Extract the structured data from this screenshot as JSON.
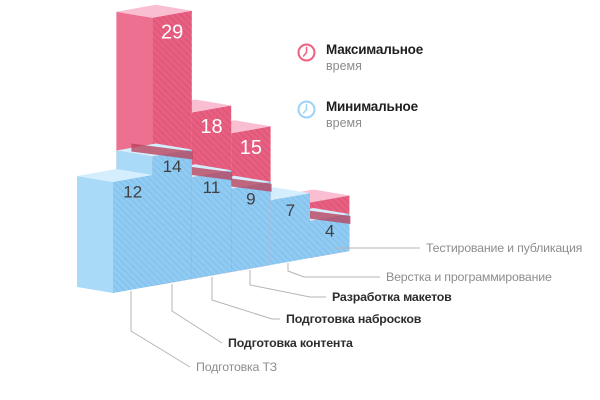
{
  "chart_data": {
    "type": "bar",
    "variant": "3D oblique step bar chart; blue minimum bars in front, pink maximum bars behind/above, value labels on bar faces, callout leader lines to stage labels",
    "title": "",
    "axes_visible": false,
    "grid": false,
    "background": "#ffffff",
    "legend_position": "top-right",
    "categories": [
      "Подготовка ТЗ",
      "Подготовка контента",
      "Подготовка набросков",
      "Разработка макетов",
      "Верстка и программирование",
      "Тестирование и публикация"
    ],
    "category_label_bold": [
      false,
      true,
      true,
      true,
      false,
      false
    ],
    "series": [
      {
        "name": "Минимальное время",
        "role": "min",
        "color": "#90cbf3",
        "values": [
          12,
          14,
          11,
          9,
          7,
          4
        ],
        "value_labels_visible": [
          true,
          true,
          true,
          true,
          true,
          true
        ]
      },
      {
        "name": "Максимальное время",
        "role": "max",
        "color": "#e85f81",
        "values": [
          null,
          29,
          18,
          15,
          null,
          6
        ],
        "value_labels_visible": [
          false,
          true,
          true,
          true,
          false,
          false
        ],
        "note": "maxima of stages 1 and 5 are hidden behind the blue bars; stage 6 maximum appears only as a small unlabeled pink cap (value estimated ~6)"
      }
    ]
  },
  "legend": {
    "max": {
      "icon": "clock-icon",
      "color": "#ee6384",
      "title": "Максимальное",
      "subtitle": "время"
    },
    "min": {
      "icon": "clock-icon",
      "color": "#9fd4f7",
      "title": "Минимальное",
      "subtitle": "время"
    }
  },
  "colors": {
    "min_face": "#90cbf3",
    "min_hatch": "#74b2e0",
    "min_side": "#a9dbf8",
    "min_top": "#d5eefd",
    "max_face": "#e85f81",
    "max_hatch": "#c94a6e",
    "max_side": "#ee7090",
    "max_top": "#f9bed1",
    "shadow_band": "#b8455f",
    "value_on_min": "#3f3f3f",
    "value_on_max": "#ffffff",
    "leader_line": "#b5b5b5",
    "label_gray": "#8d8d8d",
    "label_bold": "#2d2d2d"
  }
}
